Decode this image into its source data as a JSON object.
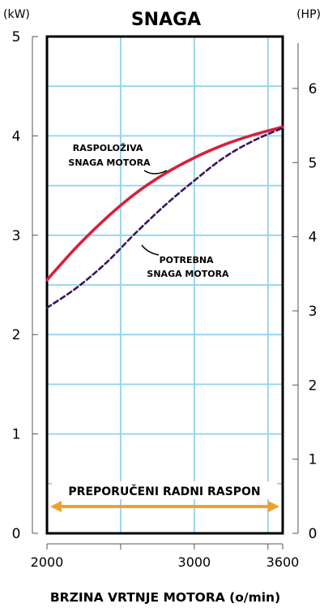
{
  "chart_data": {
    "type": "line",
    "title": "SNAGA",
    "xlabel": "BRZINA VRTNJE MOTORA (o/min)",
    "y_left_unit": "(kW)",
    "y_right_unit": "(HP)",
    "xlim": [
      2000,
      3600
    ],
    "ylim": [
      0,
      5
    ],
    "y_right_lim": [
      0,
      6.7
    ],
    "x_ticks": [
      2000,
      3000,
      3600
    ],
    "x_gridlines": [
      2000,
      2500,
      3000,
      3500,
      3600
    ],
    "y_ticks_left": [
      0,
      1,
      2,
      3,
      4,
      5
    ],
    "y_ticks_right": [
      0,
      1,
      2,
      3,
      4,
      5,
      6
    ],
    "y_gridlines": [
      0.5,
      1,
      1.5,
      2,
      2.5,
      3,
      3.5,
      4,
      4.5
    ],
    "grid": true,
    "series": [
      {
        "name": "RASPOLOŽIVA SNAGA MOTORA",
        "label_lines": [
          "RASPOLOŽIVA",
          "SNAGA MOTORA"
        ],
        "color": "#d8203a",
        "style": "solid",
        "x": [
          2000,
          2200,
          2400,
          2600,
          2800,
          3000,
          3200,
          3400,
          3600
        ],
        "y": [
          2.55,
          2.88,
          3.17,
          3.42,
          3.62,
          3.78,
          3.91,
          4.01,
          4.09
        ]
      },
      {
        "name": "POTREBNA SNAGA MOTORA",
        "label_lines": [
          "POTREBNA",
          "SNAGA MOTORA"
        ],
        "color": "#3a1560",
        "style": "dashed",
        "x": [
          2000,
          2200,
          2400,
          2600,
          2800,
          3000,
          3200,
          3400,
          3600
        ],
        "y": [
          2.27,
          2.47,
          2.72,
          3.02,
          3.3,
          3.55,
          3.78,
          3.95,
          4.08
        ]
      }
    ],
    "annotations": [
      {
        "text": "PREPORUČENI RADNI RASPON",
        "type": "range-arrow",
        "color": "#f0a030",
        "x_from": 2000,
        "x_to": 3600
      }
    ]
  }
}
